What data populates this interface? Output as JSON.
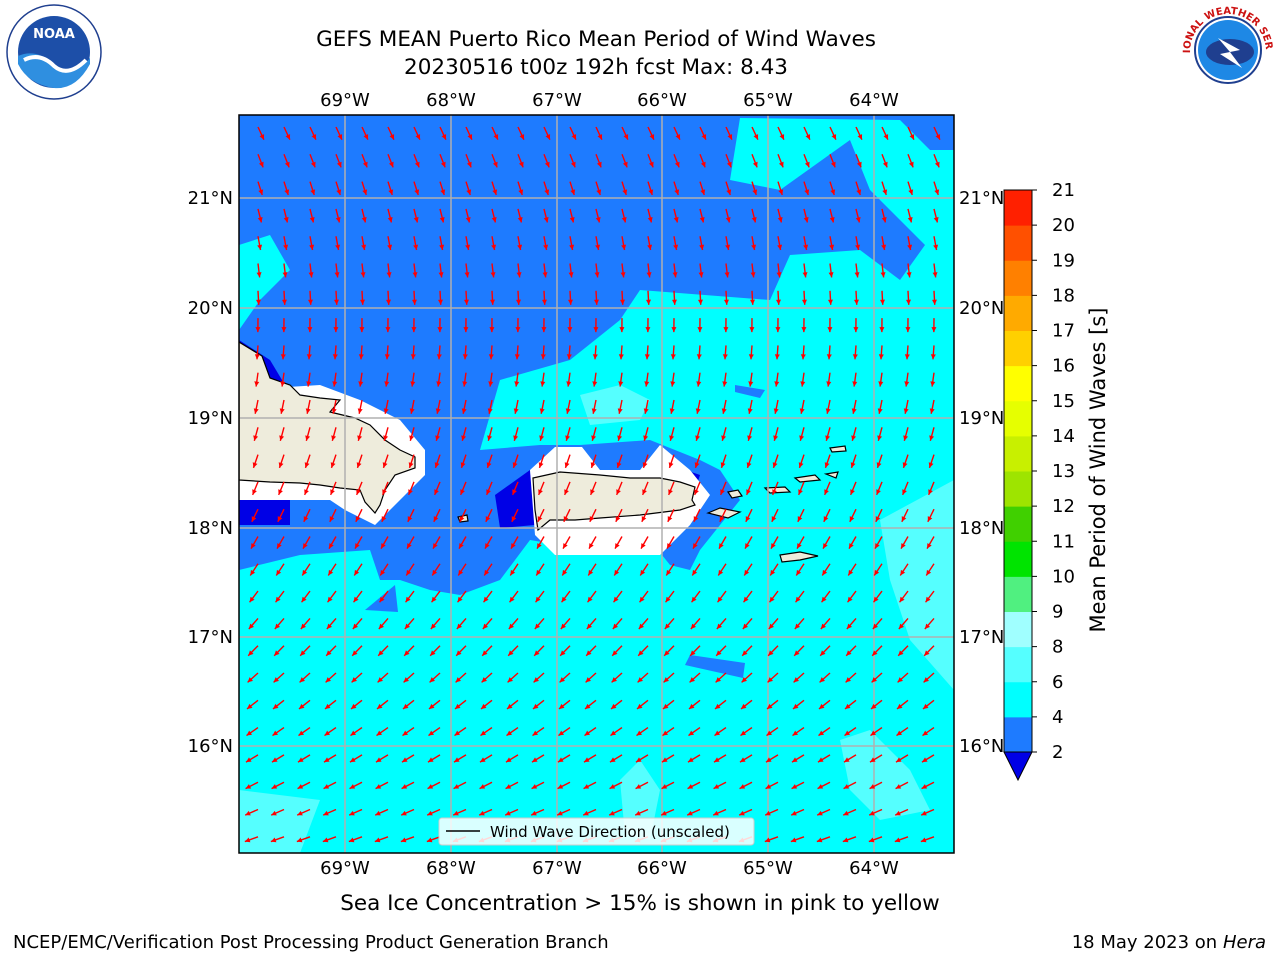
{
  "header": {
    "title_line1": "GEFS MEAN Puerto Rico Mean Period of Wind Waves",
    "title_line2": "20230516 t00z 192h fcst   Max: 8.43"
  },
  "logos": {
    "left": {
      "icon": "noaa-logo",
      "text": "NOAA"
    },
    "right": {
      "icon": "nws-logo",
      "text": "NATIONAL WEATHER SERVICE"
    }
  },
  "map": {
    "lon_labels": [
      "69°W",
      "68°W",
      "67°W",
      "66°W",
      "65°W",
      "64°W"
    ],
    "lat_labels": [
      "21°N",
      "20°N",
      "19°N",
      "18°N",
      "17°N",
      "16°N"
    ],
    "legend_label": "Wind Wave Direction (unscaled)",
    "colors": {
      "ocean_light": "#00ffff",
      "ocean_mid": "#1e7bff",
      "ocean_deep": "#0000e6",
      "ocean_pale": "#55ffff",
      "land": "#eeecdc",
      "arrow": "#ff0000",
      "grid": "#b0b0b0"
    }
  },
  "colorbar": {
    "title": "Mean Period of Wind Waves [s]",
    "ticks": [
      "2",
      "4",
      "6",
      "8",
      "9",
      "10",
      "11",
      "12",
      "13",
      "14",
      "15",
      "16",
      "17",
      "18",
      "19",
      "20",
      "21"
    ],
    "colors": [
      "#0000e6",
      "#1e7bff",
      "#00ffff",
      "#55ffff",
      "#a0ffff",
      "#50f080",
      "#00e400",
      "#40d000",
      "#9ee400",
      "#c8f000",
      "#e6ff00",
      "#ffff00",
      "#ffd000",
      "#ffaa00",
      "#ff8000",
      "#ff5000",
      "#ff2000",
      "#ff0000"
    ]
  },
  "caption": "Sea Ice Concentration > 15% is shown in pink to yellow",
  "footer": {
    "left": "NCEP/EMC/Verification Post Processing Product Generation Branch",
    "right_date": "18 May 2023 on",
    "right_host": "Hera"
  }
}
